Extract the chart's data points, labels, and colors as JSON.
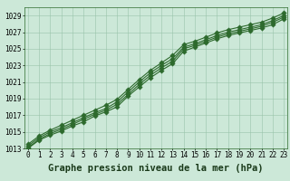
{
  "x": [
    0,
    1,
    2,
    3,
    4,
    5,
    6,
    7,
    8,
    9,
    10,
    11,
    12,
    13,
    14,
    15,
    16,
    17,
    18,
    19,
    20,
    21,
    22,
    23
  ],
  "lines": [
    [
      1013.0,
      1014.0,
      1014.6,
      1015.1,
      1015.7,
      1016.2,
      1016.9,
      1017.4,
      1018.0,
      1019.3,
      1020.4,
      1021.5,
      1022.4,
      1023.2,
      1024.7,
      1025.2,
      1025.7,
      1026.2,
      1026.6,
      1026.9,
      1027.2,
      1027.5,
      1027.9,
      1028.6
    ],
    [
      1013.1,
      1014.1,
      1014.8,
      1015.3,
      1015.9,
      1016.5,
      1017.1,
      1017.6,
      1018.3,
      1019.5,
      1020.7,
      1021.8,
      1022.7,
      1023.5,
      1025.0,
      1025.4,
      1025.9,
      1026.4,
      1026.8,
      1027.1,
      1027.4,
      1027.7,
      1028.2,
      1028.8
    ],
    [
      1013.3,
      1014.3,
      1015.0,
      1015.5,
      1016.1,
      1016.7,
      1017.3,
      1017.8,
      1018.6,
      1019.8,
      1021.0,
      1022.1,
      1023.0,
      1023.8,
      1025.2,
      1025.6,
      1026.1,
      1026.6,
      1027.0,
      1027.3,
      1027.6,
      1027.9,
      1028.4,
      1029.0
    ],
    [
      1013.5,
      1014.5,
      1015.2,
      1015.8,
      1016.4,
      1017.0,
      1017.6,
      1018.2,
      1018.9,
      1020.1,
      1021.3,
      1022.4,
      1023.3,
      1024.2,
      1025.5,
      1025.9,
      1026.4,
      1026.9,
      1027.3,
      1027.6,
      1027.9,
      1028.2,
      1028.7,
      1029.3
    ]
  ],
  "line_color": "#2d6a2d",
  "marker_color": "#2d6a2d",
  "bg_color": "#cce8d8",
  "plot_bg": "#cce8d8",
  "grid_color": "#99c4aa",
  "xlabel": "Graphe pression niveau de la mer (hPa)",
  "ylim": [
    1013,
    1030
  ],
  "xlim_min": -0.3,
  "xlim_max": 23.3,
  "yticks": [
    1013,
    1015,
    1017,
    1019,
    1021,
    1023,
    1025,
    1027,
    1029
  ],
  "xticks": [
    0,
    1,
    2,
    3,
    4,
    5,
    6,
    7,
    8,
    9,
    10,
    11,
    12,
    13,
    14,
    15,
    16,
    17,
    18,
    19,
    20,
    21,
    22,
    23
  ],
  "tick_fontsize": 5.5,
  "xlabel_fontsize": 7.5,
  "line_width": 0.8,
  "marker_size": 2.8
}
